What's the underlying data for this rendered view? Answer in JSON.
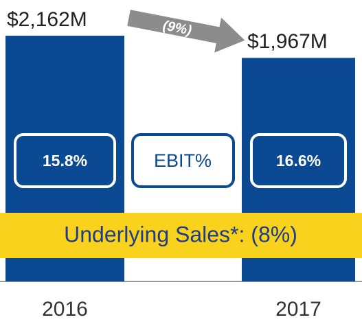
{
  "chart_data": {
    "type": "bar",
    "categories": [
      "2016",
      "2017"
    ],
    "values": [
      2162,
      1967
    ],
    "value_labels": [
      "$2,162M",
      "$1,967M"
    ],
    "color": "#0b4a92",
    "change_label": "(9%)",
    "ebit": {
      "label": "EBIT%",
      "values": [
        15.8,
        16.6
      ],
      "value_labels": [
        "15.8%",
        "16.6%"
      ]
    },
    "footnote_band": "Underlying Sales*: (8%)"
  }
}
